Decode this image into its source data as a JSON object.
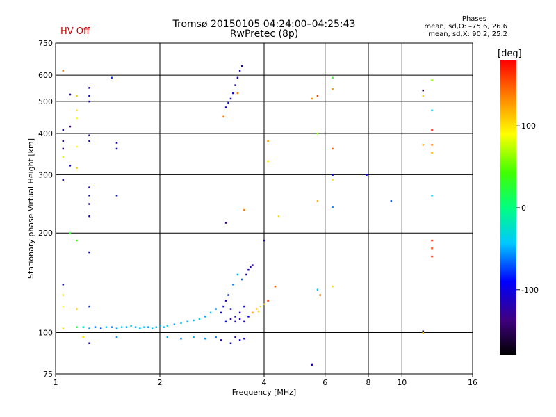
{
  "header": {
    "title": "Tromsø 20150105 04:24:00–04:25:43",
    "subtitle": "RwPretec (8p)",
    "status": "HV Off"
  },
  "phases_legend": {
    "title": "Phases",
    "o_line": "mean, sd,O: –75.6, 26.6",
    "x_line": "mean, sd,X: 90.2, 25.2"
  },
  "colorbar": {
    "unit": "[deg]",
    "range": [
      -180,
      180
    ],
    "ticks": [
      {
        "value": 100,
        "label": "100"
      },
      {
        "value": 0,
        "label": "0"
      },
      {
        "value": -100,
        "label": "-100"
      }
    ]
  },
  "chart_data": {
    "type": "scatter",
    "title": "Tromsø 20150105 04:24:00–04:25:43",
    "xlabel": "Frequency [MHz]",
    "ylabel": "Stationary phase Virtual Height [km]",
    "xscale": "log",
    "yscale": "log",
    "xlim": [
      1,
      16
    ],
    "ylim": [
      75,
      750
    ],
    "grid": true,
    "xticks": [
      {
        "value": 1,
        "label": "1"
      },
      {
        "value": 2,
        "label": "2"
      },
      {
        "value": 4,
        "label": "4"
      },
      {
        "value": 6,
        "label": "6"
      },
      {
        "value": 8,
        "label": "8"
      },
      {
        "value": 10,
        "label": "10"
      },
      {
        "value": 16,
        "label": "16"
      }
    ],
    "yticks": [
      {
        "value": 75,
        "label": "75"
      },
      {
        "value": 100,
        "label": "100"
      },
      {
        "value": 200,
        "label": "200"
      },
      {
        "value": 300,
        "label": "300"
      },
      {
        "value": 400,
        "label": "400"
      },
      {
        "value": 500,
        "label": "500"
      },
      {
        "value": 600,
        "label": "600"
      },
      {
        "value": 750,
        "label": "750"
      }
    ],
    "color_encoding": "phase [deg]",
    "points": [
      {
        "f": 1.15,
        "h": 104,
        "phase": 20
      },
      {
        "f": 1.2,
        "h": 104,
        "phase": -20
      },
      {
        "f": 1.25,
        "h": 103,
        "phase": -50
      },
      {
        "f": 1.3,
        "h": 104,
        "phase": -60
      },
      {
        "f": 1.35,
        "h": 103,
        "phase": -70
      },
      {
        "f": 1.4,
        "h": 104,
        "phase": -40
      },
      {
        "f": 1.45,
        "h": 104,
        "phase": -60
      },
      {
        "f": 1.5,
        "h": 103,
        "phase": -50
      },
      {
        "f": 1.55,
        "h": 104,
        "phase": -40
      },
      {
        "f": 1.6,
        "h": 104,
        "phase": -50
      },
      {
        "f": 1.65,
        "h": 105,
        "phase": -40
      },
      {
        "f": 1.7,
        "h": 104,
        "phase": -50
      },
      {
        "f": 1.75,
        "h": 103,
        "phase": -45
      },
      {
        "f": 1.8,
        "h": 104,
        "phase": -40
      },
      {
        "f": 1.85,
        "h": 104,
        "phase": -55
      },
      {
        "f": 1.9,
        "h": 103,
        "phase": -45
      },
      {
        "f": 1.95,
        "h": 104,
        "phase": -40
      },
      {
        "f": 2.0,
        "h": 105,
        "phase": -50
      },
      {
        "f": 2.05,
        "h": 104,
        "phase": -45
      },
      {
        "f": 2.1,
        "h": 105,
        "phase": -40
      },
      {
        "f": 2.2,
        "h": 106,
        "phase": -50
      },
      {
        "f": 2.3,
        "h": 107,
        "phase": -40
      },
      {
        "f": 2.4,
        "h": 108,
        "phase": -50
      },
      {
        "f": 2.5,
        "h": 109,
        "phase": -45
      },
      {
        "f": 2.6,
        "h": 110,
        "phase": -40
      },
      {
        "f": 2.7,
        "h": 112,
        "phase": -50
      },
      {
        "f": 2.8,
        "h": 115,
        "phase": -45
      },
      {
        "f": 2.9,
        "h": 118,
        "phase": -55
      },
      {
        "f": 2.1,
        "h": 97,
        "phase": -50
      },
      {
        "f": 2.3,
        "h": 96,
        "phase": -60
      },
      {
        "f": 2.5,
        "h": 97,
        "phase": -50
      },
      {
        "f": 2.7,
        "h": 96,
        "phase": -55
      },
      {
        "f": 2.9,
        "h": 97,
        "phase": -60
      },
      {
        "f": 1.5,
        "h": 97,
        "phase": -55
      },
      {
        "f": 1.2,
        "h": 97,
        "phase": 100
      },
      {
        "f": 1.05,
        "h": 103,
        "phase": 100
      },
      {
        "f": 1.25,
        "h": 93,
        "phase": -110
      },
      {
        "f": 3.0,
        "h": 115,
        "phase": -100
      },
      {
        "f": 3.05,
        "h": 120,
        "phase": -90
      },
      {
        "f": 3.1,
        "h": 125,
        "phase": -110
      },
      {
        "f": 3.15,
        "h": 130,
        "phase": -80
      },
      {
        "f": 3.2,
        "h": 118,
        "phase": -100
      },
      {
        "f": 3.25,
        "h": 140,
        "phase": -60
      },
      {
        "f": 3.3,
        "h": 112,
        "phase": -110
      },
      {
        "f": 3.35,
        "h": 150,
        "phase": -50
      },
      {
        "f": 3.4,
        "h": 115,
        "phase": -120
      },
      {
        "f": 3.45,
        "h": 145,
        "phase": -70
      },
      {
        "f": 3.5,
        "h": 120,
        "phase": -100
      },
      {
        "f": 3.55,
        "h": 150,
        "phase": -110
      },
      {
        "f": 3.6,
        "h": 155,
        "phase": -120
      },
      {
        "f": 3.65,
        "h": 158,
        "phase": -115
      },
      {
        "f": 3.7,
        "h": 160,
        "phase": -125
      },
      {
        "f": 3.0,
        "h": 95,
        "phase": -110
      },
      {
        "f": 3.2,
        "h": 93,
        "phase": -100
      },
      {
        "f": 3.3,
        "h": 97,
        "phase": -120
      },
      {
        "f": 3.4,
        "h": 95,
        "phase": -105
      },
      {
        "f": 3.5,
        "h": 96,
        "phase": -110
      },
      {
        "f": 3.1,
        "h": 108,
        "phase": -90
      },
      {
        "f": 3.2,
        "h": 110,
        "phase": -110
      },
      {
        "f": 3.3,
        "h": 108,
        "phase": -100
      },
      {
        "f": 3.4,
        "h": 110,
        "phase": -120
      },
      {
        "f": 3.5,
        "h": 108,
        "phase": -110
      },
      {
        "f": 3.6,
        "h": 112,
        "phase": -95
      },
      {
        "f": 3.7,
        "h": 115,
        "phase": 120
      },
      {
        "f": 3.8,
        "h": 118,
        "phase": 110
      },
      {
        "f": 3.9,
        "h": 120,
        "phase": 100
      },
      {
        "f": 4.0,
        "h": 122,
        "phase": 110
      },
      {
        "f": 3.85,
        "h": 116,
        "phase": 105
      },
      {
        "f": 4.1,
        "h": 125,
        "phase": 160
      },
      {
        "f": 4.3,
        "h": 138,
        "phase": 150
      },
      {
        "f": 3.1,
        "h": 480,
        "phase": -110
      },
      {
        "f": 3.15,
        "h": 495,
        "phase": -100
      },
      {
        "f": 3.2,
        "h": 510,
        "phase": -110
      },
      {
        "f": 3.25,
        "h": 530,
        "phase": -105
      },
      {
        "f": 3.3,
        "h": 560,
        "phase": -110
      },
      {
        "f": 3.35,
        "h": 590,
        "phase": -120
      },
      {
        "f": 3.4,
        "h": 620,
        "phase": -115
      },
      {
        "f": 3.45,
        "h": 640,
        "phase": -110
      },
      {
        "f": 3.35,
        "h": 530,
        "phase": 140
      },
      {
        "f": 3.05,
        "h": 450,
        "phase": 140
      },
      {
        "f": 3.1,
        "h": 215,
        "phase": -140
      },
      {
        "f": 3.5,
        "h": 235,
        "phase": 140
      },
      {
        "f": 1.05,
        "h": 620,
        "phase": 140
      },
      {
        "f": 1.1,
        "h": 525,
        "phase": -120
      },
      {
        "f": 1.15,
        "h": 520,
        "phase": 110
      },
      {
        "f": 1.15,
        "h": 470,
        "phase": 100
      },
      {
        "f": 1.15,
        "h": 445,
        "phase": 90
      },
      {
        "f": 1.25,
        "h": 550,
        "phase": -110
      },
      {
        "f": 1.25,
        "h": 520,
        "phase": -100
      },
      {
        "f": 1.25,
        "h": 500,
        "phase": -120
      },
      {
        "f": 1.05,
        "h": 410,
        "phase": -110
      },
      {
        "f": 1.1,
        "h": 420,
        "phase": -140
      },
      {
        "f": 1.05,
        "h": 380,
        "phase": -130
      },
      {
        "f": 1.05,
        "h": 360,
        "phase": -140
      },
      {
        "f": 1.05,
        "h": 340,
        "phase": 80
      },
      {
        "f": 1.1,
        "h": 320,
        "phase": -100
      },
      {
        "f": 1.05,
        "h": 290,
        "phase": -110
      },
      {
        "f": 1.15,
        "h": 365,
        "phase": 90
      },
      {
        "f": 1.15,
        "h": 315,
        "phase": 110
      },
      {
        "f": 1.25,
        "h": 395,
        "phase": -120
      },
      {
        "f": 1.25,
        "h": 380,
        "phase": -110
      },
      {
        "f": 1.25,
        "h": 275,
        "phase": -110
      },
      {
        "f": 1.25,
        "h": 260,
        "phase": -100
      },
      {
        "f": 1.25,
        "h": 245,
        "phase": -120
      },
      {
        "f": 1.25,
        "h": 225,
        "phase": -110
      },
      {
        "f": 1.5,
        "h": 375,
        "phase": -110
      },
      {
        "f": 1.5,
        "h": 360,
        "phase": -100
      },
      {
        "f": 1.5,
        "h": 260,
        "phase": -90
      },
      {
        "f": 1.45,
        "h": 590,
        "phase": -80
      },
      {
        "f": 1.1,
        "h": 200,
        "phase": 30
      },
      {
        "f": 1.15,
        "h": 190,
        "phase": 40
      },
      {
        "f": 1.25,
        "h": 175,
        "phase": -100
      },
      {
        "f": 1.05,
        "h": 140,
        "phase": -100
      },
      {
        "f": 1.05,
        "h": 130,
        "phase": 100
      },
      {
        "f": 1.05,
        "h": 120,
        "phase": 90
      },
      {
        "f": 1.15,
        "h": 118,
        "phase": 110
      },
      {
        "f": 1.25,
        "h": 120,
        "phase": -80
      },
      {
        "f": 4.0,
        "h": 190,
        "phase": -120
      },
      {
        "f": 4.1,
        "h": 380,
        "phase": 130
      },
      {
        "f": 4.1,
        "h": 330,
        "phase": 100
      },
      {
        "f": 4.4,
        "h": 225,
        "phase": 100
      },
      {
        "f": 5.5,
        "h": 510,
        "phase": 130
      },
      {
        "f": 5.7,
        "h": 520,
        "phase": 160
      },
      {
        "f": 5.7,
        "h": 400,
        "phase": 60
      },
      {
        "f": 5.7,
        "h": 250,
        "phase": 120
      },
      {
        "f": 5.7,
        "h": 135,
        "phase": -40
      },
      {
        "f": 5.8,
        "h": 130,
        "phase": 140
      },
      {
        "f": 6.3,
        "h": 590,
        "phase": 30
      },
      {
        "f": 6.3,
        "h": 545,
        "phase": 130
      },
      {
        "f": 6.3,
        "h": 360,
        "phase": 150
      },
      {
        "f": 6.3,
        "h": 300,
        "phase": -100
      },
      {
        "f": 6.3,
        "h": 290,
        "phase": 100
      },
      {
        "f": 6.3,
        "h": 240,
        "phase": -60
      },
      {
        "f": 6.3,
        "h": 138,
        "phase": 100
      },
      {
        "f": 5.5,
        "h": 80,
        "phase": -120
      },
      {
        "f": 7.9,
        "h": 300,
        "phase": -100
      },
      {
        "f": 9.3,
        "h": 250,
        "phase": -70
      },
      {
        "f": 11.5,
        "h": 540,
        "phase": -150
      },
      {
        "f": 11.5,
        "h": 520,
        "phase": 110
      },
      {
        "f": 11.5,
        "h": 370,
        "phase": 120
      },
      {
        "f": 11.5,
        "h": 101,
        "phase": -170
      },
      {
        "f": 11.5,
        "h": 100,
        "phase": 110
      },
      {
        "f": 12.2,
        "h": 580,
        "phase": 60
      },
      {
        "f": 12.2,
        "h": 470,
        "phase": -40
      },
      {
        "f": 12.2,
        "h": 410,
        "phase": 170
      },
      {
        "f": 12.2,
        "h": 370,
        "phase": 140
      },
      {
        "f": 12.2,
        "h": 350,
        "phase": 120
      },
      {
        "f": 12.2,
        "h": 260,
        "phase": -40
      },
      {
        "f": 12.2,
        "h": 190,
        "phase": 170
      },
      {
        "f": 12.2,
        "h": 180,
        "phase": 160
      },
      {
        "f": 12.2,
        "h": 170,
        "phase": 170
      }
    ]
  }
}
